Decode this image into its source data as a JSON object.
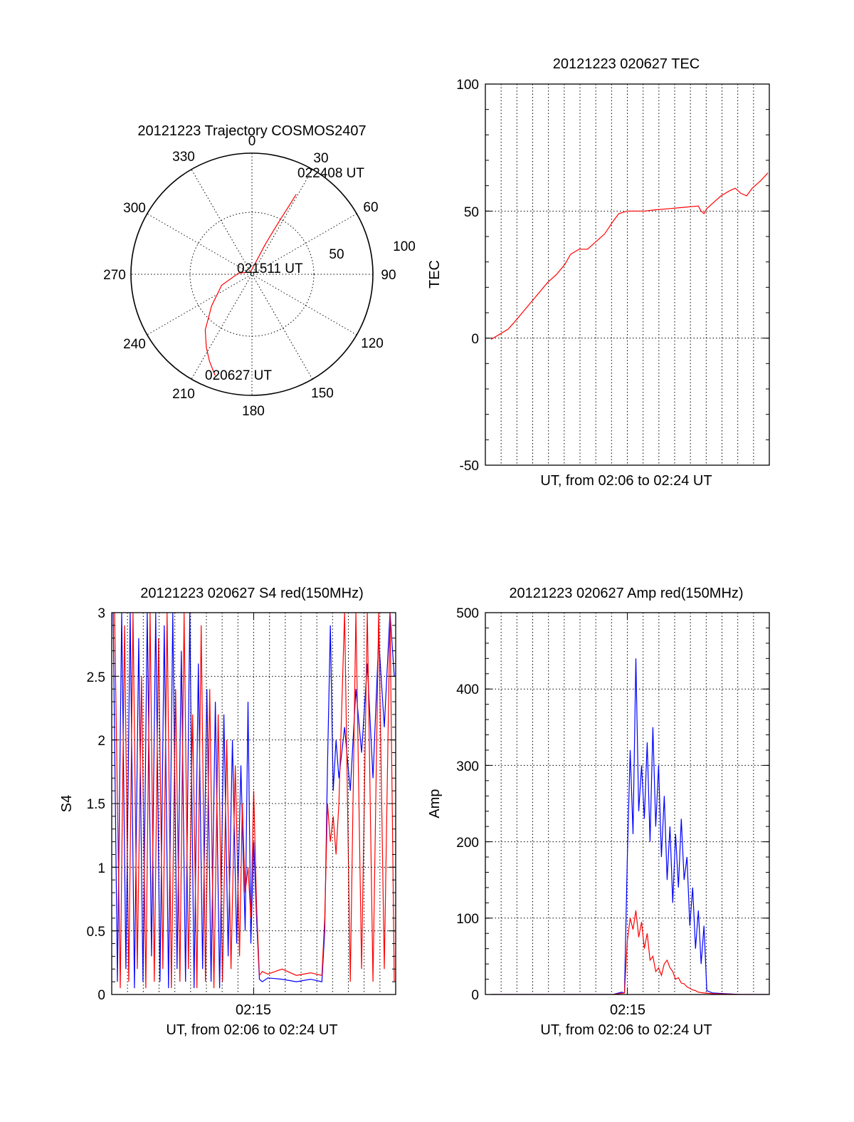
{
  "colors": {
    "red": "#ff0000",
    "blue": "#0000ff",
    "axis": "#000000",
    "grid": "#000000"
  },
  "chart_data": [
    {
      "id": "polar",
      "type": "polar-trajectory",
      "title": "20121223 Trajectory COSMOS2407",
      "angle_labels": [
        "0",
        "30",
        "60",
        "90",
        "120",
        "150",
        "180",
        "210",
        "240",
        "270",
        "300",
        "330"
      ],
      "radial_labels": [
        "50",
        "100"
      ],
      "grid": true,
      "trajectory": {
        "points_az_el": [
          [
            200,
            10
          ],
          [
            206,
            18
          ],
          [
            212,
            26
          ],
          [
            220,
            36
          ],
          [
            232,
            52
          ],
          [
            250,
            66
          ],
          [
            275,
            80
          ],
          [
            330,
            88
          ],
          [
            20,
            78
          ],
          [
            24,
            66
          ],
          [
            26,
            56
          ],
          [
            27.5,
            44
          ],
          [
            28.5,
            32
          ],
          [
            29,
            22
          ]
        ]
      },
      "annotations": [
        {
          "text": "022408 UT",
          "at": "end"
        },
        {
          "text": "021511 UT",
          "at": "center"
        },
        {
          "text": "020627 UT",
          "at": "start"
        }
      ]
    },
    {
      "id": "tec",
      "type": "line",
      "title": "20121223 020627 TEC",
      "xlabel": "UT, from 02:06 to 02:24 UT",
      "ylabel": "TEC",
      "ylim": [
        -50,
        100
      ],
      "yticks": [
        "-50",
        "0",
        "50",
        "100"
      ],
      "xlim": [
        0,
        1
      ],
      "xtick_labels": [],
      "grid": true,
      "series": [
        {
          "color": "red",
          "x": [
            0.02,
            0.05,
            0.08,
            0.1,
            0.13,
            0.16,
            0.19,
            0.22,
            0.25,
            0.28,
            0.3,
            0.33,
            0.36,
            0.39,
            0.42,
            0.45,
            0.47,
            0.5,
            0.53,
            0.56,
            0.6,
            0.65,
            0.7,
            0.75,
            0.76,
            0.77,
            0.78,
            0.8,
            0.83,
            0.86,
            0.88,
            0.9,
            0.92,
            0.94,
            0.97,
            0.995
          ],
          "y": [
            -0.5,
            1.5,
            3.5,
            6,
            10,
            14,
            18,
            22,
            25,
            29,
            33,
            35,
            35,
            38,
            41,
            46,
            49,
            50,
            50,
            50,
            50.5,
            51,
            51.5,
            52,
            50,
            49,
            51,
            53,
            56,
            58,
            59,
            57,
            56,
            59,
            62,
            65
          ]
        }
      ]
    },
    {
      "id": "s4",
      "type": "line",
      "title": "20121223 020627 S4 red(150MHz)",
      "xlabel": "UT, from 02:06 to 02:24 UT",
      "ylabel": "S4",
      "ylim": [
        0,
        3
      ],
      "yticks": [
        "0",
        "0.5",
        "1",
        "1.5",
        "2",
        "2.5",
        "3"
      ],
      "xtick_label": "02:15",
      "xtick_pos": 0.5,
      "grid": true,
      "series": [
        {
          "color": "blue",
          "x": [
            0.005,
            0.02,
            0.035,
            0.05,
            0.065,
            0.08,
            0.095,
            0.11,
            0.125,
            0.14,
            0.155,
            0.17,
            0.185,
            0.2,
            0.215,
            0.23,
            0.245,
            0.26,
            0.275,
            0.29,
            0.305,
            0.32,
            0.335,
            0.35,
            0.365,
            0.38,
            0.395,
            0.41,
            0.425,
            0.44,
            0.455,
            0.47,
            0.48,
            0.49,
            0.5,
            0.51,
            0.52,
            0.53,
            0.55,
            0.6,
            0.65,
            0.7,
            0.74,
            0.75,
            0.76,
            0.77,
            0.78,
            0.79,
            0.8,
            0.82,
            0.84,
            0.86,
            0.88,
            0.9,
            0.92,
            0.94,
            0.96,
            0.98,
            0.995
          ],
          "y": [
            3,
            0.1,
            3,
            0.2,
            3,
            0.05,
            2.8,
            0.1,
            3,
            0.3,
            3,
            0.1,
            2.9,
            0.05,
            3,
            0.2,
            2.7,
            0.1,
            3,
            0.05,
            2.6,
            0.2,
            2.4,
            0.1,
            2.3,
            0.05,
            2.2,
            0.3,
            2.0,
            0.4,
            1.8,
            0.5,
            2.3,
            0.4,
            1.2,
            0.6,
            0.12,
            0.1,
            0.13,
            0.12,
            0.1,
            0.12,
            0.1,
            0.5,
            1.8,
            2.9,
            1.6,
            2.0,
            1.7,
            2.1,
            1.6,
            2.4,
            1.9,
            2.6,
            1.7,
            2.8,
            2.1,
            3,
            2.5
          ]
        },
        {
          "color": "red",
          "x": [
            0.01,
            0.03,
            0.045,
            0.06,
            0.075,
            0.09,
            0.105,
            0.12,
            0.135,
            0.15,
            0.165,
            0.18,
            0.195,
            0.21,
            0.225,
            0.24,
            0.255,
            0.27,
            0.285,
            0.3,
            0.315,
            0.33,
            0.345,
            0.36,
            0.375,
            0.39,
            0.405,
            0.42,
            0.435,
            0.45,
            0.46,
            0.47,
            0.48,
            0.49,
            0.5,
            0.51,
            0.52,
            0.53,
            0.55,
            0.6,
            0.65,
            0.7,
            0.74,
            0.75,
            0.76,
            0.77,
            0.78,
            0.79,
            0.8,
            0.82,
            0.84,
            0.86,
            0.88,
            0.9,
            0.92,
            0.94,
            0.96,
            0.98,
            0.995
          ],
          "y": [
            3,
            0.05,
            2.9,
            0.1,
            3,
            0.2,
            2.5,
            0.05,
            3,
            0.1,
            2.8,
            0.2,
            3,
            0.05,
            2.4,
            0.1,
            3,
            0.2,
            2.2,
            0.05,
            2.9,
            0.1,
            2.4,
            0.05,
            2.2,
            0.1,
            2.0,
            0.2,
            1.8,
            0.3,
            1.5,
            0.8,
            1.0,
            0.6,
            1.6,
            0.7,
            0.15,
            0.18,
            0.16,
            0.2,
            0.15,
            0.17,
            0.15,
            0.6,
            1.5,
            1.2,
            1.4,
            1.1,
            1.5,
            3,
            0.1,
            3,
            0.2,
            3,
            0.1,
            3,
            0.2,
            3,
            0.1
          ]
        }
      ]
    },
    {
      "id": "amp",
      "type": "line",
      "title": "20121223 020627 Amp red(150MHz)",
      "xlabel": "UT, from 02:06 to 02:24 UT",
      "ylabel": "Amp",
      "ylim": [
        0,
        500
      ],
      "yticks": [
        "0",
        "100",
        "200",
        "300",
        "400",
        "500"
      ],
      "xtick_label": "02:15",
      "xtick_pos": 0.5,
      "grid": true,
      "series": [
        {
          "color": "blue",
          "x": [
            0.02,
            0.2,
            0.45,
            0.48,
            0.49,
            0.5,
            0.51,
            0.52,
            0.53,
            0.54,
            0.55,
            0.56,
            0.57,
            0.58,
            0.59,
            0.6,
            0.61,
            0.62,
            0.63,
            0.64,
            0.65,
            0.66,
            0.67,
            0.68,
            0.69,
            0.7,
            0.71,
            0.72,
            0.73,
            0.74,
            0.75,
            0.76,
            0.77,
            0.78,
            0.8,
            0.9,
            0.995
          ],
          "y": [
            0,
            0,
            0,
            3,
            2,
            180,
            320,
            210,
            440,
            240,
            300,
            230,
            330,
            200,
            350,
            220,
            300,
            180,
            260,
            150,
            220,
            120,
            210,
            140,
            230,
            150,
            180,
            90,
            140,
            60,
            110,
            40,
            90,
            5,
            2,
            0,
            0
          ]
        },
        {
          "color": "red",
          "x": [
            0.02,
            0.2,
            0.45,
            0.49,
            0.5,
            0.51,
            0.52,
            0.53,
            0.54,
            0.55,
            0.56,
            0.57,
            0.58,
            0.59,
            0.6,
            0.61,
            0.62,
            0.63,
            0.64,
            0.65,
            0.66,
            0.67,
            0.68,
            0.69,
            0.7,
            0.71,
            0.72,
            0.73,
            0.74,
            0.75,
            0.77,
            0.8,
            0.9,
            0.995
          ],
          "y": [
            0,
            0,
            0,
            2,
            70,
            100,
            85,
            110,
            75,
            95,
            60,
            80,
            45,
            50,
            30,
            35,
            25,
            40,
            45,
            35,
            30,
            20,
            22,
            15,
            14,
            10,
            8,
            6,
            5,
            3,
            2,
            1,
            0,
            0
          ]
        }
      ]
    }
  ]
}
